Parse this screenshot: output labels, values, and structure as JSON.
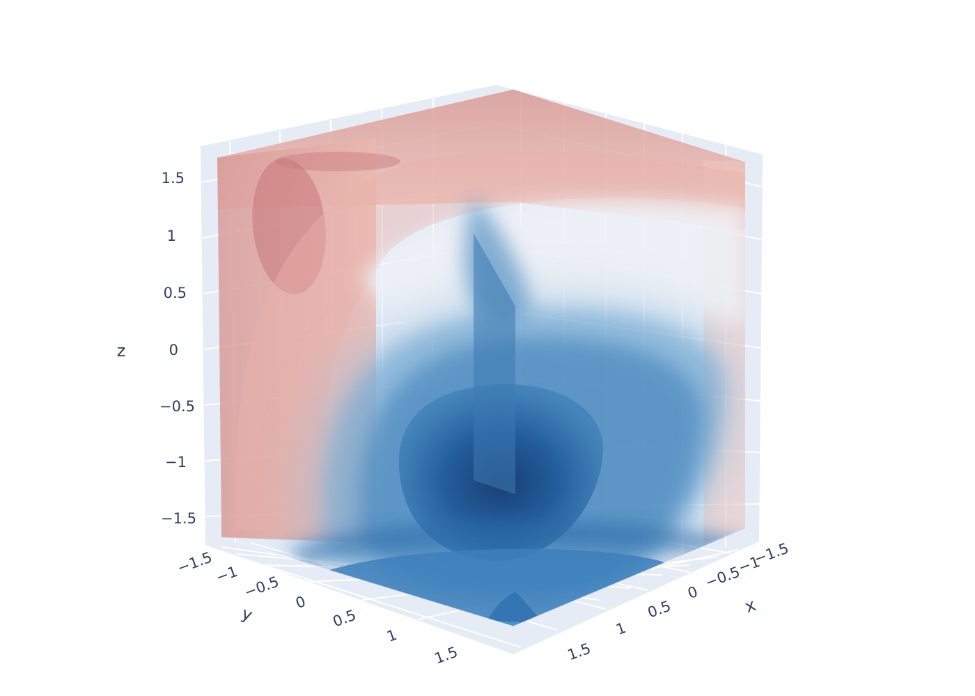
{
  "chart_data": {
    "type": "volume",
    "title": "",
    "colorscale": "RdBu",
    "colors": {
      "pane": "#e5ecf6",
      "grid": "#ffffff",
      "tick_text": "#2a3f5f",
      "high": "#c8696c",
      "low": "#1f5a9a"
    },
    "axes": {
      "x": {
        "label": "x",
        "range": [
          -1.5,
          1.5
        ],
        "ticks": [
          "−1.5",
          "−1",
          "−0.5",
          "0",
          "0.5",
          "1",
          "1.5"
        ]
      },
      "y": {
        "label": "y",
        "range": [
          -1.5,
          1.5
        ],
        "ticks": [
          "−1.5",
          "−1",
          "−0.5",
          "0",
          "0.5",
          "1",
          "1.5"
        ]
      },
      "z": {
        "label": "z",
        "range": [
          -1.5,
          1.5
        ],
        "ticks": [
          "−1.5",
          "−1",
          "−0.5",
          "0",
          "0.5",
          "1",
          "1.5"
        ]
      }
    },
    "grid": true,
    "showlegend": false,
    "showscale": false
  }
}
